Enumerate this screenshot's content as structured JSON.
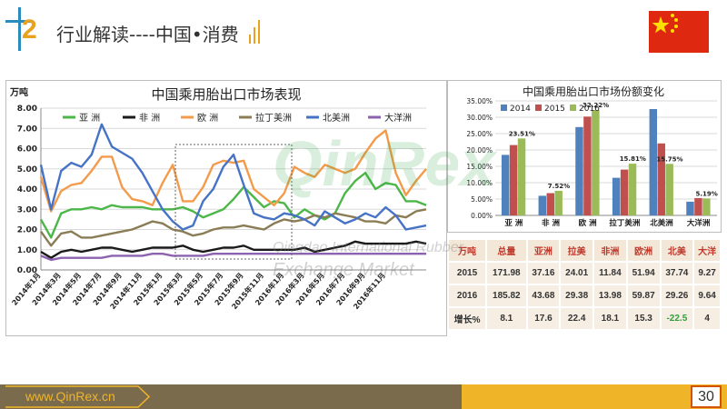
{
  "header": {
    "section_number": "2",
    "title": "行业解读----中国•消费"
  },
  "colors": {
    "brand_blue": "#2a8bbd",
    "brand_orange": "#e8a21e",
    "footer_brown": "#7a6b4d"
  },
  "watermark": {
    "logo": "QinRex",
    "line1": "Qingdao International Rubber",
    "line2": "Exchange Market"
  },
  "chart_data": [
    {
      "type": "line",
      "title": "中国乘用胎出口市场表现",
      "ylabel": "万吨",
      "ylim": [
        0,
        8
      ],
      "yticks": [
        "0.00",
        "1.00",
        "2.00",
        "3.00",
        "4.00",
        "5.00",
        "6.00",
        "7.00",
        "8.00"
      ],
      "xticks": [
        "2014年1月",
        "2014年3月",
        "2014年5月",
        "2014年7月",
        "2014年9月",
        "2014年11月",
        "2015年1月",
        "2015年3月",
        "2015年5月",
        "2015年7月",
        "2015年9月",
        "2015年11月",
        "2016年1月",
        "2016年3月",
        "2016年5月",
        "2016年7月",
        "2016年9月",
        "2016年11月"
      ],
      "legend_position": "top",
      "series": [
        {
          "name": "亚  洲",
          "color": "#4cb648",
          "values": [
            2.5,
            1.6,
            2.8,
            3.0,
            3.0,
            3.1,
            3.0,
            3.2,
            3.1,
            3.1,
            3.1,
            3.0,
            3.0,
            3.0,
            3.1,
            2.9,
            2.6,
            2.8,
            3.0,
            3.5,
            4.1,
            3.6,
            3.1,
            3.4,
            3.3,
            2.6,
            3.0,
            2.7,
            2.5,
            2.8,
            3.8,
            4.4,
            4.8,
            4.0,
            4.3,
            4.2,
            3.4,
            3.4,
            3.2
          ]
        },
        {
          "name": "非  洲",
          "color": "#1a1a1a",
          "values": [
            0.9,
            0.6,
            0.9,
            1.0,
            0.9,
            1.0,
            1.1,
            1.1,
            1.0,
            0.9,
            1.0,
            1.1,
            1.1,
            1.1,
            1.2,
            1.0,
            0.9,
            1.0,
            1.1,
            1.1,
            1.2,
            1.0,
            1.0,
            1.0,
            1.0,
            1.0,
            1.1,
            0.9,
            1.0,
            1.1,
            1.2,
            1.4,
            1.3,
            1.3,
            1.3,
            1.3,
            1.3,
            1.4,
            1.3
          ]
        },
        {
          "name": "欧  洲",
          "color": "#f39b4b",
          "values": [
            4.6,
            2.9,
            3.9,
            4.2,
            4.3,
            4.9,
            5.6,
            5.6,
            4.1,
            3.5,
            3.4,
            3.2,
            4.3,
            5.2,
            3.4,
            3.4,
            4.1,
            5.2,
            5.4,
            5.3,
            5.4,
            4.0,
            3.6,
            3.2,
            3.8,
            5.1,
            4.8,
            4.6,
            5.2,
            5.0,
            4.8,
            5.0,
            5.8,
            6.5,
            6.9,
            4.8,
            3.7,
            4.4,
            5.0
          ]
        },
        {
          "name": "拉丁美洲",
          "color": "#8a7d55",
          "values": [
            1.9,
            1.2,
            1.8,
            1.9,
            1.6,
            1.6,
            1.7,
            1.8,
            1.9,
            2.0,
            2.2,
            2.4,
            2.3,
            2.0,
            1.9,
            1.7,
            1.8,
            2.0,
            2.1,
            2.1,
            2.2,
            2.1,
            2.0,
            2.3,
            2.5,
            2.4,
            2.5,
            2.7,
            2.6,
            2.8,
            2.7,
            2.6,
            2.4,
            2.4,
            2.3,
            2.7,
            2.6,
            2.9,
            3.0
          ]
        },
        {
          "name": "北美洲",
          "color": "#4673c6",
          "values": [
            5.2,
            3.0,
            4.9,
            5.3,
            5.1,
            5.7,
            7.2,
            6.1,
            5.8,
            5.5,
            4.8,
            3.9,
            3.0,
            2.4,
            2.0,
            2.2,
            3.4,
            4.0,
            5.1,
            5.7,
            4.2,
            2.8,
            2.6,
            2.5,
            2.8,
            2.7,
            2.5,
            2.2,
            2.9,
            2.6,
            2.3,
            2.5,
            2.8,
            2.6,
            3.1,
            2.7,
            2.0,
            2.1,
            2.2
          ]
        },
        {
          "name": "大洋洲",
          "color": "#8c63b0",
          "values": [
            0.7,
            0.5,
            0.6,
            0.6,
            0.6,
            0.6,
            0.6,
            0.7,
            0.7,
            0.7,
            0.7,
            0.8,
            0.8,
            0.7,
            0.7,
            0.7,
            0.7,
            0.8,
            0.8,
            0.8,
            0.8,
            0.8,
            0.8,
            0.8,
            0.8,
            0.8,
            0.8,
            0.8,
            0.8,
            0.8,
            0.8,
            0.8,
            0.8,
            0.8,
            0.8,
            0.8,
            0.8,
            0.8,
            0.8
          ]
        }
      ]
    },
    {
      "type": "bar",
      "title": "中国乘用胎出口市场份额变化",
      "ylim": [
        0,
        35
      ],
      "yticks": [
        "0.00%",
        "5.00%",
        "10.00%",
        "15.00%",
        "20.00%",
        "25.00%",
        "30.00%",
        "35.00%"
      ],
      "categories": [
        "亚  洲",
        "非  洲",
        "欧  洲",
        "拉丁美洲",
        "北美洲",
        "大洋洲"
      ],
      "legend_position": "top-left",
      "series": [
        {
          "name": "2014",
          "color": "#4f81bd",
          "values": [
            18.5,
            6.0,
            27.0,
            11.5,
            32.5,
            4.2
          ]
        },
        {
          "name": "2015",
          "color": "#c0504d",
          "values": [
            21.5,
            6.8,
            30.2,
            14.0,
            22.0,
            5.3
          ]
        },
        {
          "name": "2016",
          "color": "#9bbb59",
          "values": [
            23.51,
            7.52,
            32.22,
            15.81,
            15.75,
            5.19
          ]
        }
      ],
      "data_labels": [
        "23.51%",
        "7.52%",
        "32.22%",
        "15.81%",
        "15.75%",
        "5.19%"
      ]
    }
  ],
  "table": {
    "headers": [
      "万吨",
      "总量",
      "亚洲",
      "拉美",
      "非洲",
      "欧洲",
      "北美",
      "大洋"
    ],
    "rows": [
      [
        "2015",
        "171.98",
        "37.16",
        "24.01",
        "11.84",
        "51.94",
        "37.74",
        "9.27"
      ],
      [
        "2016",
        "185.82",
        "43.68",
        "29.38",
        "13.98",
        "59.87",
        "29.26",
        "9.64"
      ]
    ],
    "growth_label": "增长%",
    "growth": [
      "8.1",
      "17.6",
      "22.4",
      "18.1",
      "15.3",
      "-22.5",
      "4"
    ]
  },
  "footer": {
    "url": "www.QinRex.cn",
    "page": "30"
  }
}
